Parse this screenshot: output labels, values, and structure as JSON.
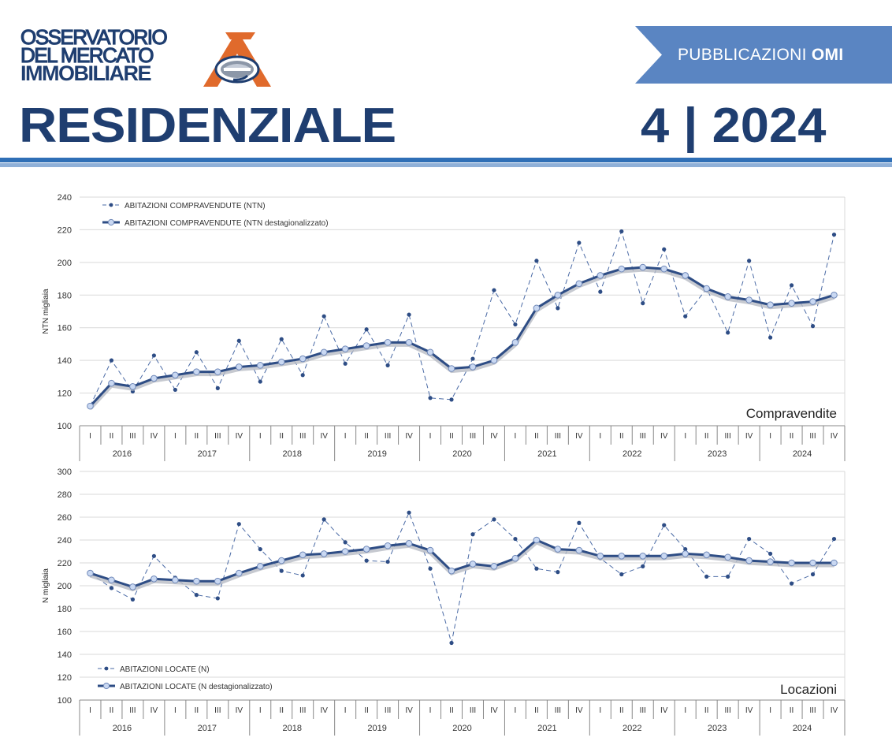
{
  "header": {
    "logo_line1": "OSSERVATORIO",
    "logo_line2": "DEL MERCATO",
    "logo_line3": "IMMOBILIARE",
    "publication_prefix": "PUBBLICAZIONI ",
    "publication_suffix": "OMI",
    "title": "RESIDENZIALE",
    "edition": "4 | 2024"
  },
  "colors": {
    "brand_blue": "#1f3e70",
    "accent_blue": "#2f6fb6",
    "banner_blue": "#5a85c2",
    "logo_orange": "#e06a2c",
    "series_dark": "#2e4d85",
    "marker_fill": "#c9d8f2"
  },
  "chart_data": [
    {
      "type": "line",
      "corner_label": "Compravendite",
      "ylabel": "NTN migliaia",
      "ylim": [
        100,
        240
      ],
      "yticks": [
        100,
        120,
        140,
        160,
        180,
        200,
        220,
        240
      ],
      "grid": true,
      "legend_position": "top-left",
      "quarters": [
        "I",
        "II",
        "III",
        "IV"
      ],
      "years": [
        "2016",
        "2017",
        "2018",
        "2019",
        "2020",
        "2021",
        "2022",
        "2023",
        "2024"
      ],
      "series": [
        {
          "name": "ABITAZIONI COMPRAVENDUTE (NTN)",
          "style": "dashed",
          "values": [
            112,
            140,
            121,
            143,
            122,
            145,
            123,
            152,
            127,
            153,
            131,
            167,
            138,
            159,
            137,
            168,
            117,
            116,
            141,
            183,
            162,
            201,
            172,
            212,
            182,
            219,
            175,
            208,
            167,
            184,
            157,
            201,
            154,
            186,
            161,
            217
          ]
        },
        {
          "name": "ABITAZIONI COMPRAVENDUTE (NTN destagionalizzato)",
          "style": "solid",
          "values": [
            112,
            126,
            124,
            129,
            131,
            133,
            133,
            136,
            137,
            139,
            141,
            145,
            147,
            149,
            151,
            151,
            145,
            135,
            136,
            140,
            151,
            172,
            180,
            187,
            192,
            196,
            197,
            196,
            192,
            184,
            179,
            177,
            174,
            175,
            176,
            180
          ]
        }
      ]
    },
    {
      "type": "line",
      "corner_label": "Locazioni",
      "ylabel": "N migliaia",
      "ylim": [
        100,
        300
      ],
      "yticks": [
        100,
        120,
        140,
        160,
        180,
        200,
        220,
        240,
        260,
        280,
        300
      ],
      "grid": true,
      "legend_position": "bottom-left",
      "quarters": [
        "I",
        "II",
        "III",
        "IV"
      ],
      "years": [
        "2016",
        "2017",
        "2018",
        "2019",
        "2020",
        "2021",
        "2022",
        "2023",
        "2024"
      ],
      "series": [
        {
          "name": "ABITAZIONI LOCATE (N)",
          "style": "dashed",
          "values": [
            211,
            198,
            188,
            226,
            207,
            192,
            189,
            254,
            232,
            213,
            209,
            258,
            238,
            222,
            221,
            264,
            215,
            150,
            245,
            258,
            241,
            215,
            212,
            255,
            224,
            210,
            217,
            253,
            232,
            208,
            208,
            241,
            228,
            202,
            210,
            241
          ]
        },
        {
          "name": "ABITAZIONI LOCATE (N destagionalizzato)",
          "style": "solid",
          "values": [
            211,
            205,
            199,
            206,
            205,
            204,
            204,
            211,
            217,
            222,
            227,
            228,
            230,
            232,
            235,
            237,
            231,
            213,
            219,
            217,
            224,
            240,
            232,
            231,
            226,
            226,
            226,
            226,
            228,
            227,
            225,
            222,
            221,
            220,
            220,
            220
          ]
        }
      ]
    }
  ]
}
